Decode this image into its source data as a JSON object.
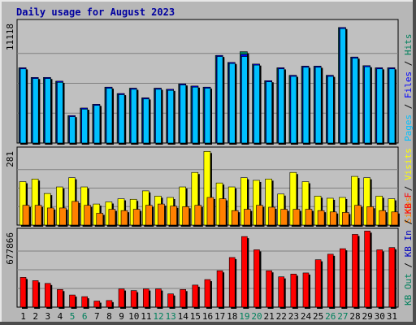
{
  "title": "Daily usage for August 2023",
  "colors": {
    "hits": "#00805c",
    "files": "#0000ff",
    "pages": "#00c0ff",
    "visits": "#ffff00",
    "sites": "#ff8000",
    "kbin": "#0000c0",
    "kbout": "#00805c",
    "kbf": "#ff0000",
    "weekend": "#00805c",
    "weekday": "#000000"
  },
  "chart_data": [
    {
      "type": "bar",
      "panel": "top",
      "max_label": "11118",
      "legend": [
        {
          "text": "Hits",
          "color": "#00805c"
        },
        {
          "text": "Files",
          "color": "#0000ff"
        },
        {
          "text": "Pages",
          "color": "#00c0ff"
        }
      ],
      "categories": [
        "1",
        "2",
        "3",
        "4",
        "5",
        "6",
        "7",
        "8",
        "9",
        "10",
        "11",
        "12",
        "13",
        "14",
        "15",
        "16",
        "17",
        "18",
        "19",
        "20",
        "21",
        "22",
        "23",
        "24",
        "25",
        "26",
        "27",
        "28",
        "29",
        "30",
        "31"
      ],
      "series": [
        {
          "name": "Hits",
          "values": [
            7000,
            6100,
            6100,
            5750,
            2550,
            3250,
            3600,
            5200,
            4600,
            5100,
            4200,
            5100,
            5000,
            5500,
            5300,
            5200,
            8150,
            7500,
            8500,
            7350,
            5800,
            7000,
            6300,
            7150,
            7150,
            6300,
            10750,
            8000,
            7200,
            7000,
            7000
          ]
        },
        {
          "name": "Files",
          "values": [
            7000,
            6100,
            6100,
            5750,
            2550,
            3250,
            3600,
            5200,
            4600,
            5100,
            4200,
            5100,
            5000,
            5500,
            5300,
            5200,
            8150,
            7500,
            8250,
            7350,
            5800,
            7000,
            6300,
            7150,
            7150,
            6300,
            10750,
            8000,
            7200,
            7000,
            7000
          ]
        },
        {
          "name": "Pages",
          "values": [
            6900,
            6000,
            6000,
            5650,
            2450,
            3150,
            3500,
            5100,
            4500,
            5000,
            4100,
            5000,
            4900,
            5400,
            5200,
            5100,
            8050,
            7400,
            8050,
            7250,
            5700,
            6900,
            6200,
            7050,
            7050,
            6200,
            10650,
            7900,
            7100,
            6900,
            6900
          ]
        }
      ]
    },
    {
      "type": "bar",
      "panel": "middle",
      "max_label": "281",
      "legend": [
        {
          "text": "Visits",
          "color": "#ffff00"
        },
        {
          "text": "Sites",
          "color": "#ff8000"
        }
      ],
      "categories": [
        "1",
        "2",
        "3",
        "4",
        "5",
        "6",
        "7",
        "8",
        "9",
        "10",
        "11",
        "12",
        "13",
        "14",
        "15",
        "16",
        "17",
        "18",
        "19",
        "20",
        "21",
        "22",
        "23",
        "24",
        "25",
        "26",
        "27",
        "28",
        "29",
        "30",
        "31"
      ],
      "series": [
        {
          "name": "Visits",
          "values": [
            165,
            175,
            120,
            145,
            180,
            145,
            80,
            88,
            100,
            98,
            130,
            110,
            105,
            145,
            200,
            280,
            160,
            145,
            180,
            170,
            175,
            118,
            200,
            165,
            110,
            102,
            105,
            185,
            180,
            110,
            100
          ]
        },
        {
          "name": "Sites",
          "values": [
            75,
            75,
            65,
            65,
            90,
            75,
            45,
            60,
            55,
            60,
            75,
            80,
            72,
            70,
            75,
            105,
            100,
            55,
            60,
            75,
            68,
            60,
            60,
            60,
            55,
            50,
            48,
            75,
            70,
            55,
            50
          ]
        }
      ]
    },
    {
      "type": "bar",
      "panel": "bottom",
      "max_label": "677866",
      "legend": [
        {
          "text": "KB F",
          "color": "#ff0000"
        },
        {
          "text": "KB In",
          "color": "#0000c0"
        },
        {
          "text": "KB Out",
          "color": "#00805c"
        }
      ],
      "categories": [
        "1",
        "2",
        "3",
        "4",
        "5",
        "6",
        "7",
        "8",
        "9",
        "10",
        "11",
        "12",
        "13",
        "14",
        "15",
        "16",
        "17",
        "18",
        "19",
        "20",
        "21",
        "22",
        "23",
        "24",
        "25",
        "26",
        "27",
        "28",
        "29",
        "30",
        "31"
      ],
      "series": [
        {
          "name": "KB F",
          "values": [
            270000,
            240000,
            215000,
            160000,
            110000,
            95000,
            55000,
            60000,
            165000,
            150000,
            165000,
            165000,
            120000,
            160000,
            200000,
            250000,
            330000,
            450000,
            640000,
            520000,
            330000,
            275000,
            300000,
            310000,
            430000,
            480000,
            530000,
            660000,
            690000,
            520000,
            540000
          ]
        }
      ]
    }
  ]
}
